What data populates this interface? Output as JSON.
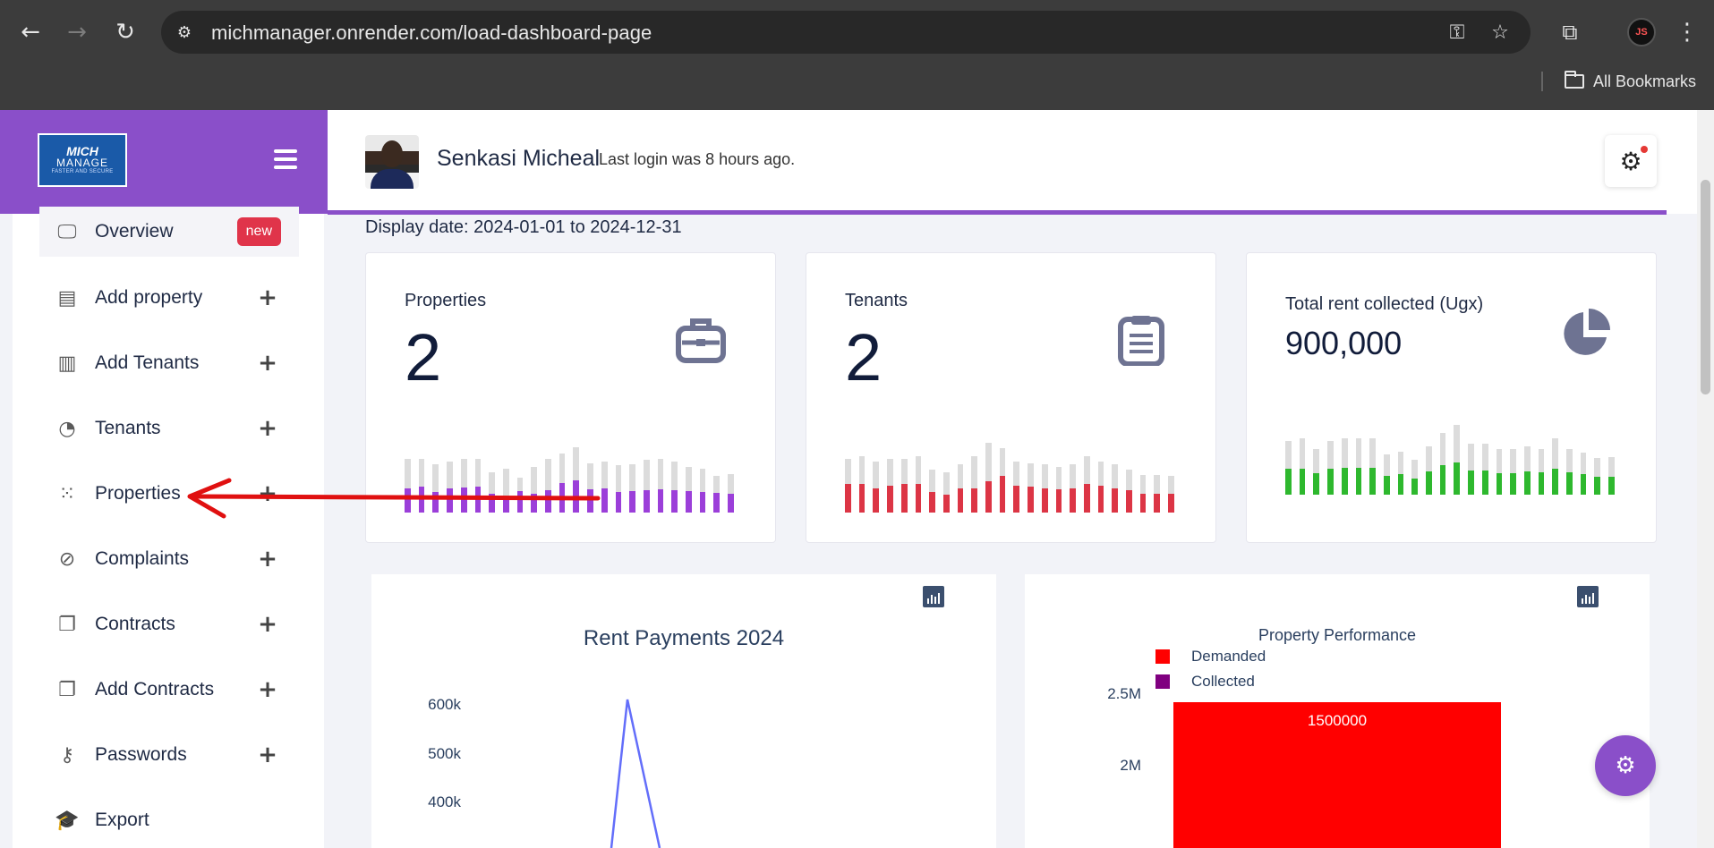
{
  "browser": {
    "url": "michmanager.onrender.com/load-dashboard-page",
    "bookmarks_label": "All Bookmarks",
    "profile_initials": "JS"
  },
  "brand": {
    "logo_line1": "MICH",
    "logo_line2": "MANAGE",
    "logo_line3": "FASTER AND SECURE"
  },
  "header": {
    "user_name": "Senkasi Micheal",
    "last_login": "Last login was 8 hours ago."
  },
  "sidebar": {
    "items": [
      {
        "label": "Overview",
        "icon": "monitor-icon",
        "badge": "new"
      },
      {
        "label": "Add property",
        "icon": "document-icon"
      },
      {
        "label": "Add Tenants",
        "icon": "film-icon"
      },
      {
        "label": "Tenants",
        "icon": "pie-icon"
      },
      {
        "label": "Properties",
        "icon": "grid-icon"
      },
      {
        "label": "Complaints",
        "icon": "compass-icon"
      },
      {
        "label": "Contracts",
        "icon": "copy-icon"
      },
      {
        "label": "Add Contracts",
        "icon": "copy-icon"
      },
      {
        "label": "Passwords",
        "icon": "key-icon"
      },
      {
        "label": "Export",
        "icon": "graduation-cap-icon"
      }
    ],
    "plus": "+"
  },
  "main": {
    "display_date": "Display date: 2024-01-01 to 2024-12-31"
  },
  "cards": [
    {
      "title": "Properties",
      "value": "2",
      "icon": "briefcase-icon",
      "accent": "#9b3fd9"
    },
    {
      "title": "Tenants",
      "value": "2",
      "icon": "clipboard-icon",
      "accent": "#dc3545"
    },
    {
      "title": "Total rent collected (Ugx)",
      "value": "900,000",
      "icon": "pie-chart-icon",
      "accent": "#2eb82e"
    }
  ],
  "chart_data": [
    {
      "type": "bar",
      "title": "",
      "series": [
        {
          "values": [
            0.45,
            0.48,
            0.38,
            0.45,
            0.47,
            0.48,
            0.35,
            0.3,
            0.4,
            0.35,
            0.42,
            0.55,
            0.6,
            0.43,
            0.45,
            0.38,
            0.4,
            0.42,
            0.44,
            0.42,
            0.4,
            0.38,
            0.36,
            0.35
          ]
        },
        {
          "values": [
            1,
            1,
            0.9,
            0.95,
            1,
            1,
            0.75,
            0.82,
            0.65,
            0.85,
            1,
            1.1,
            1.22,
            0.92,
            0.95,
            0.88,
            0.9,
            0.98,
            1,
            0.95,
            0.85,
            0.82,
            0.68,
            0.72
          ]
        }
      ]
    },
    {
      "type": "bar",
      "title": "",
      "series": [
        {
          "values": [
            0.53,
            0.53,
            0.45,
            0.5,
            0.53,
            0.53,
            0.38,
            0.33,
            0.45,
            0.45,
            0.58,
            0.68,
            0.5,
            0.48,
            0.45,
            0.43,
            0.45,
            0.53,
            0.5,
            0.45,
            0.42,
            0.35,
            0.35,
            0.35
          ]
        },
        {
          "values": [
            1,
            1.05,
            0.95,
            1,
            1,
            1.05,
            0.8,
            0.75,
            0.9,
            1.05,
            1.3,
            1.2,
            0.95,
            0.92,
            0.9,
            0.85,
            0.9,
            1.05,
            0.95,
            0.9,
            0.8,
            0.7,
            0.7,
            0.68
          ]
        }
      ]
    },
    {
      "type": "bar",
      "title": "",
      "series": [
        {
          "values": [
            0.48,
            0.48,
            0.4,
            0.48,
            0.5,
            0.5,
            0.5,
            0.35,
            0.38,
            0.3,
            0.43,
            0.55,
            0.6,
            0.45,
            0.45,
            0.4,
            0.4,
            0.43,
            0.42,
            0.48,
            0.42,
            0.38,
            0.33,
            0.33
          ]
        },
        {
          "values": [
            1,
            1.05,
            0.85,
            1,
            1.05,
            1.05,
            1.05,
            0.75,
            0.8,
            0.65,
            0.9,
            1.15,
            1.3,
            0.95,
            0.95,
            0.85,
            0.85,
            0.9,
            0.85,
            1.05,
            0.85,
            0.78,
            0.68,
            0.7
          ]
        }
      ]
    },
    {
      "type": "line",
      "title": "Rent Payments 2024",
      "yticks": [
        "600k",
        "500k",
        "400k"
      ],
      "peak_value": 600000
    },
    {
      "type": "bar",
      "title": "Property Performance",
      "legend": [
        "Demanded",
        "Collected"
      ],
      "legend_colors": [
        "#ff0000",
        "#800080"
      ],
      "yticks": [
        "2.5M",
        "2M"
      ],
      "bar_label": "1500000"
    }
  ]
}
